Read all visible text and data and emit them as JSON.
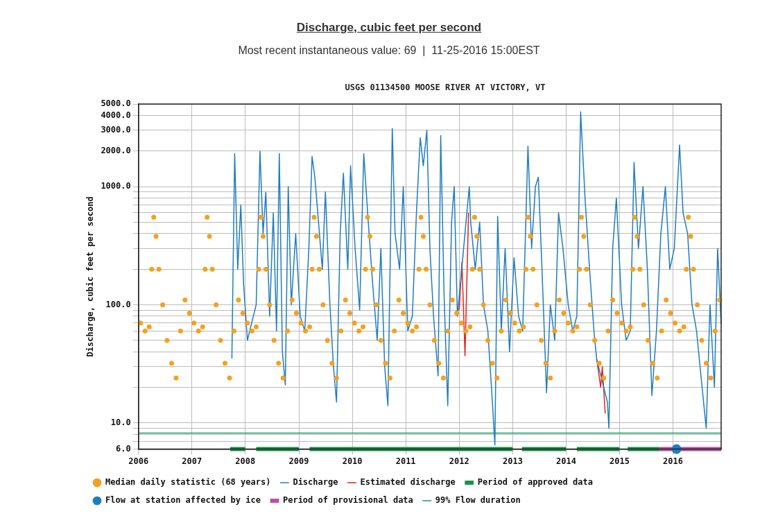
{
  "chart_data": {
    "type": "line",
    "title": "Discharge, cubic feet per second",
    "subtitle": "Most recent instantaneous value: 69  |  11-25-2016 15:00EST",
    "annotations": [
      "USGS 01134500 MOOSE RIVER AT VICTORY, VT"
    ],
    "ylabel": "Discharge, cubic feet per second",
    "log": "y",
    "grid": true,
    "legend": "bottom",
    "xlim": [
      "2006-01-01",
      "2016-11-25"
    ],
    "xticks": [
      {
        "value": "2006-01-01",
        "label": "2006"
      },
      {
        "value": "2007-01-01",
        "label": "2007"
      },
      {
        "value": "2008-01-01",
        "label": "2008"
      },
      {
        "value": "2009-01-01",
        "label": "2009"
      },
      {
        "value": "2010-01-01",
        "label": "2010"
      },
      {
        "value": "2011-01-01",
        "label": "2011"
      },
      {
        "value": "2012-01-01",
        "label": "2012"
      },
      {
        "value": "2013-01-01",
        "label": "2013"
      },
      {
        "value": "2014-01-01",
        "label": "2014"
      },
      {
        "value": "2015-01-01",
        "label": "2015"
      },
      {
        "value": "2016-01-01",
        "label": "2016"
      }
    ],
    "ylim": [
      6,
      5000
    ],
    "yticks": [
      {
        "value": 6,
        "label": "6.0"
      },
      {
        "value": 7,
        "label": null
      },
      {
        "value": 8,
        "label": null
      },
      {
        "value": 9,
        "label": null
      },
      {
        "value": 10,
        "label": "10.0"
      },
      {
        "value": 20,
        "label": null
      },
      {
        "value": 30,
        "label": null
      },
      {
        "value": 40,
        "label": null
      },
      {
        "value": 50,
        "label": null
      },
      {
        "value": 60,
        "label": null
      },
      {
        "value": 70,
        "label": null
      },
      {
        "value": 80,
        "label": null
      },
      {
        "value": 90,
        "label": null
      },
      {
        "value": 100,
        "label": "100.0"
      },
      {
        "value": 200,
        "label": null
      },
      {
        "value": 300,
        "label": null
      },
      {
        "value": 400,
        "label": null
      },
      {
        "value": 500,
        "label": null
      },
      {
        "value": 600,
        "label": null
      },
      {
        "value": 700,
        "label": null
      },
      {
        "value": 800,
        "label": null
      },
      {
        "value": 900,
        "label": null
      },
      {
        "value": 1000,
        "label": "1000.0"
      },
      {
        "value": 2000,
        "label": "2000.0"
      },
      {
        "value": 3000,
        "label": "3000.0"
      },
      {
        "value": 4000,
        "label": "4000.0"
      },
      {
        "value": 5000,
        "label": "5000.0"
      }
    ],
    "series": [
      {
        "name": "Median daily statistic (68 years)",
        "type": "scatter",
        "marker": "circle",
        "color": "#f5a11c",
        "x": [
          "2006-01-15",
          "2006-02-15",
          "2006-03-15",
          "2006-04-01",
          "2006-04-15",
          "2006-05-01",
          "2006-05-20",
          "2006-06-15",
          "2006-07-15",
          "2006-08-15",
          "2006-09-15",
          "2006-10-15",
          "2006-11-15",
          "2006-12-15",
          "2007-01-15",
          "2007-02-15",
          "2007-03-15",
          "2007-04-01",
          "2007-04-15",
          "2007-05-01",
          "2007-05-20",
          "2007-06-15",
          "2007-07-15",
          "2007-08-15",
          "2007-09-15",
          "2007-10-15",
          "2007-11-15",
          "2007-12-15",
          "2008-01-15",
          "2008-02-15",
          "2008-03-15",
          "2008-04-01",
          "2008-04-15",
          "2008-05-01",
          "2008-05-20",
          "2008-06-15",
          "2008-07-15",
          "2008-08-15",
          "2008-09-15",
          "2008-10-15",
          "2008-11-15",
          "2008-12-15",
          "2009-01-15",
          "2009-02-15",
          "2009-03-15",
          "2009-04-01",
          "2009-04-15",
          "2009-05-01",
          "2009-05-20",
          "2009-06-15",
          "2009-07-15",
          "2009-08-15",
          "2009-09-15",
          "2009-10-15",
          "2009-11-15",
          "2009-12-15",
          "2010-01-15",
          "2010-02-15",
          "2010-03-15",
          "2010-04-01",
          "2010-04-15",
          "2010-05-01",
          "2010-05-20",
          "2010-06-15",
          "2010-07-15",
          "2010-08-15",
          "2010-09-15",
          "2010-10-15",
          "2010-11-15",
          "2010-12-15",
          "2011-01-15",
          "2011-02-15",
          "2011-03-15",
          "2011-04-01",
          "2011-04-15",
          "2011-05-01",
          "2011-05-20",
          "2011-06-15",
          "2011-07-15",
          "2011-08-15",
          "2011-09-15",
          "2011-10-15",
          "2011-11-15",
          "2011-12-15",
          "2012-01-15",
          "2012-02-15",
          "2012-03-15",
          "2012-04-01",
          "2012-04-15",
          "2012-05-01",
          "2012-05-20",
          "2012-06-15",
          "2012-07-15",
          "2012-08-15",
          "2012-09-15",
          "2012-10-15",
          "2012-11-15",
          "2012-12-15",
          "2013-01-15",
          "2013-02-15",
          "2013-03-15",
          "2013-04-01",
          "2013-04-15",
          "2013-05-01",
          "2013-05-20",
          "2013-06-15",
          "2013-07-15",
          "2013-08-15",
          "2013-09-15",
          "2013-10-15",
          "2013-11-15",
          "2013-12-15",
          "2014-01-15",
          "2014-02-15",
          "2014-03-15",
          "2014-04-01",
          "2014-04-15",
          "2014-05-01",
          "2014-05-20",
          "2014-06-15",
          "2014-07-15",
          "2014-08-15",
          "2014-09-15",
          "2014-10-15",
          "2014-11-15",
          "2014-12-15",
          "2015-01-15",
          "2015-02-15",
          "2015-03-15",
          "2015-04-01",
          "2015-04-15",
          "2015-05-01",
          "2015-05-20",
          "2015-06-15",
          "2015-07-15",
          "2015-08-15",
          "2015-09-15",
          "2015-10-15",
          "2015-11-15",
          "2015-12-15",
          "2016-01-15",
          "2016-02-15",
          "2016-03-15",
          "2016-04-01",
          "2016-04-15",
          "2016-05-01",
          "2016-05-20",
          "2016-06-15",
          "2016-07-15",
          "2016-08-15",
          "2016-09-15",
          "2016-10-15",
          "2016-11-15"
        ],
        "values": [
          70,
          60,
          65,
          200,
          550,
          380,
          200,
          100,
          50,
          32,
          24,
          60,
          110,
          85,
          70,
          60,
          65,
          200,
          550,
          380,
          200,
          100,
          50,
          32,
          24,
          60,
          110,
          85,
          70,
          60,
          65,
          200,
          550,
          380,
          200,
          100,
          50,
          32,
          24,
          60,
          110,
          85,
          70,
          60,
          65,
          200,
          550,
          380,
          200,
          100,
          50,
          32,
          24,
          60,
          110,
          85,
          70,
          60,
          65,
          200,
          550,
          380,
          200,
          100,
          50,
          32,
          24,
          60,
          110,
          85,
          70,
          60,
          65,
          200,
          550,
          380,
          200,
          100,
          50,
          32,
          24,
          60,
          110,
          85,
          70,
          60,
          65,
          200,
          550,
          380,
          200,
          100,
          50,
          32,
          24,
          60,
          110,
          85,
          70,
          60,
          65,
          200,
          550,
          380,
          200,
          100,
          50,
          32,
          24,
          60,
          110,
          85,
          70,
          60,
          65,
          200,
          550,
          380,
          200,
          100,
          50,
          32,
          24,
          60,
          110,
          85,
          70,
          60,
          65,
          200,
          550,
          380,
          200,
          100,
          50,
          32,
          24,
          60,
          110,
          85,
          70,
          60,
          65,
          200,
          550,
          380,
          200,
          100,
          50,
          32,
          24,
          60,
          110
        ]
      },
      {
        "name": "Discharge",
        "color": "#1f7cc1",
        "x": [
          "2007-10-01",
          "2007-10-20",
          "2007-11-10",
          "2007-12-01",
          "2007-12-20",
          "2008-01-15",
          "2008-03-15",
          "2008-04-10",
          "2008-05-01",
          "2008-05-20",
          "2008-06-15",
          "2008-07-10",
          "2008-08-01",
          "2008-08-20",
          "2008-09-10",
          "2008-09-30",
          "2008-10-20",
          "2008-11-10",
          "2008-12-10",
          "2009-01-10",
          "2009-02-10",
          "2009-03-10",
          "2009-04-01",
          "2009-04-20",
          "2009-05-15",
          "2009-06-10",
          "2009-07-01",
          "2009-08-01",
          "2009-08-25",
          "2009-09-15",
          "2009-10-10",
          "2009-11-01",
          "2009-12-01",
          "2009-12-20",
          "2010-01-20",
          "2010-02-20",
          "2010-03-20",
          "2010-04-20",
          "2010-05-20",
          "2010-06-20",
          "2010-07-15",
          "2010-08-10",
          "2010-09-01",
          "2010-10-01",
          "2010-10-20",
          "2010-11-20",
          "2010-12-15",
          "2011-01-15",
          "2011-02-15",
          "2011-03-15",
          "2011-04-10",
          "2011-05-01",
          "2011-05-25",
          "2011-06-15",
          "2011-07-10",
          "2011-08-10",
          "2011-08-28",
          "2011-09-20",
          "2011-10-15",
          "2011-11-10",
          "2011-11-28",
          "2011-12-20",
          "2012-03-10",
          "2012-03-20",
          "2012-04-20",
          "2012-05-20",
          "2012-06-15",
          "2012-07-15",
          "2012-08-15",
          "2012-09-01",
          "2012-09-20",
          "2012-10-15",
          "2012-11-10",
          "2012-12-10",
          "2013-01-10",
          "2013-02-10",
          "2013-03-10",
          "2013-04-15",
          "2013-05-10",
          "2013-06-05",
          "2013-06-25",
          "2013-07-20",
          "2013-08-20",
          "2013-09-15",
          "2013-10-15",
          "2013-11-10",
          "2013-12-10",
          "2014-01-15",
          "2014-02-15",
          "2014-03-15",
          "2014-04-10",
          "2014-05-10",
          "2014-06-10",
          "2014-07-10",
          "2014-07-28",
          "2014-10-10",
          "2014-10-20",
          "2014-11-15",
          "2014-12-10",
          "2015-01-15",
          "2015-02-15",
          "2015-03-15",
          "2015-04-10",
          "2015-05-10",
          "2015-06-10",
          "2015-07-10",
          "2015-08-10",
          "2015-09-10",
          "2015-10-10",
          "2015-11-10",
          "2015-12-10",
          "2016-01-10",
          "2016-02-15",
          "2016-03-10",
          "2016-04-10",
          "2016-05-10",
          "2016-06-10",
          "2016-07-10",
          "2016-08-15",
          "2016-09-10",
          "2016-10-10",
          "2016-11-01",
          "2016-11-25"
        ],
        "values": [
          35,
          1900,
          200,
          700,
          150,
          50,
          100,
          2000,
          400,
          900,
          80,
          600,
          60,
          1900,
          40,
          21,
          1000,
          100,
          400,
          80,
          60,
          300,
          1800,
          1200,
          500,
          200,
          900,
          100,
          30,
          15,
          400,
          1300,
          200,
          1500,
          300,
          90,
          1900,
          500,
          150,
          50,
          300,
          30,
          14,
          3100,
          400,
          200,
          1000,
          60,
          80,
          600,
          2600,
          1500,
          3000,
          300,
          80,
          25,
          2700,
          120,
          14,
          500,
          1000,
          80,
          1000,
          500,
          200,
          500,
          100,
          60,
          15,
          6.5,
          560,
          60,
          300,
          40,
          250,
          80,
          60,
          2200,
          300,
          1000,
          1200,
          200,
          18,
          100,
          50,
          600,
          300,
          100,
          60,
          80,
          4300,
          800,
          200,
          60,
          35,
          15,
          9,
          300,
          800,
          100,
          50,
          60,
          1600,
          300,
          1000,
          200,
          17,
          60,
          400,
          1000,
          200,
          300,
          2250,
          600,
          400,
          100,
          60,
          25,
          9,
          100,
          20,
          300,
          69
        ]
      },
      {
        "name": "Estimated discharge",
        "color": "#e3241b",
        "x": [
          "2012-01-01",
          "2012-01-20",
          "2012-02-10",
          "2012-03-05",
          "2012-03-20",
          "2014-07-28",
          "2014-08-25",
          "2014-09-05",
          "2014-09-25"
        ],
        "values": [
          90,
          230,
          37,
          600,
          null,
          35,
          20,
          30,
          12
        ]
      },
      {
        "name": "Period of approved data",
        "color": "#17944a",
        "x": [
          "2007-09-20",
          "2007-12-31",
          "2008-02-01",
          "2008-03-15",
          "2008-12-31",
          "2009-02-01",
          "2009-03-15",
          "2012-12-31",
          "2013-02-01",
          "2013-03-05",
          "2013-12-31",
          "2014-02-01",
          "2014-03-15",
          "2014-12-31",
          "2015-02-01",
          "2015-02-25",
          "2015-09-30"
        ],
        "values": [
          6,
          6,
          null,
          6,
          6,
          null,
          6,
          6,
          null,
          6,
          6,
          null,
          6,
          6,
          null,
          6,
          6
        ]
      },
      {
        "name": "Flow at station affected by ice",
        "type": "scatter",
        "marker": "circle",
        "color": "#1f7cc1",
        "x": [
          "2016-01-25"
        ],
        "values": [
          6
        ]
      },
      {
        "name": "Period of provisional data",
        "color": "#b94fa8",
        "x": [
          "2015-10-01",
          "2016-11-25"
        ],
        "values": [
          6,
          6
        ]
      },
      {
        "name": "99% Flow duration",
        "color": "#1a9a6a",
        "x": [
          "2006-01-01",
          "2016-11-25"
        ],
        "values": [
          8.2,
          8.2
        ]
      }
    ]
  }
}
